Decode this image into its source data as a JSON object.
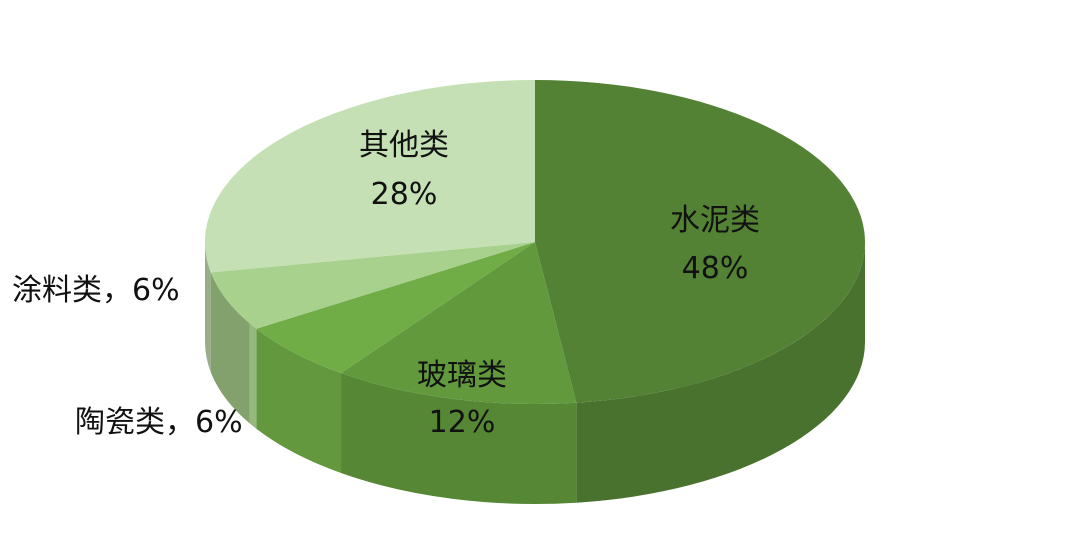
{
  "chart_data": {
    "type": "pie",
    "style": "3d",
    "start": "top",
    "direction": "clockwise",
    "slices": [
      {
        "label": "水泥类",
        "value": 48,
        "display": "48%",
        "color": "#548235"
      },
      {
        "label": "玻璃类",
        "value": 12,
        "display": "12%",
        "color": "#62993c"
      },
      {
        "label": "陶瓷类",
        "value": 6,
        "display": "6%",
        "color": "#70ad47"
      },
      {
        "label": "涂料类",
        "value": 6,
        "display": "6%",
        "color": "#a9d18e"
      },
      {
        "label": "其他类",
        "value": 28,
        "display": "28%",
        "color": "#c5e0b4"
      }
    ],
    "outside_labels": [
      "陶瓷类，6%",
      "涂料类，6%"
    ]
  }
}
